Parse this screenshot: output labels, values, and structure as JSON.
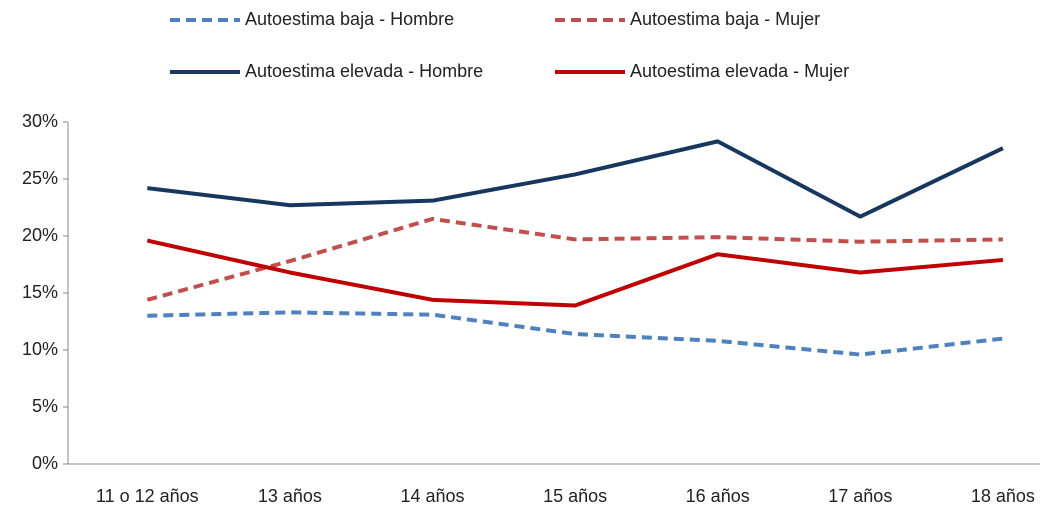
{
  "chart_data": {
    "type": "line",
    "categories": [
      "11 o 12 años",
      "13 años",
      "14 años",
      "15 años",
      "16 años",
      "17 años",
      "18 años"
    ],
    "series": [
      {
        "name": "Autoestima baja - Hombre",
        "color": "#4f81bd",
        "style": "dashed",
        "values": [
          13.0,
          13.3,
          13.1,
          11.4,
          10.8,
          9.6,
          11.0
        ]
      },
      {
        "name": "Autoestima baja - Mujer",
        "color": "#c0504d",
        "style": "dashed",
        "values": [
          14.4,
          17.8,
          21.5,
          19.7,
          19.9,
          19.5,
          19.7
        ]
      },
      {
        "name": "Autoestima elevada - Hombre",
        "color": "#17375e",
        "style": "solid",
        "values": [
          24.2,
          22.7,
          23.1,
          25.4,
          28.3,
          21.7,
          27.7
        ]
      },
      {
        "name": "Autoestima elevada - Mujer",
        "color": "#c00000",
        "style": "solid",
        "values": [
          19.6,
          16.8,
          14.4,
          13.9,
          18.4,
          16.8,
          17.9
        ]
      }
    ],
    "ylim": [
      0,
      30
    ],
    "yticks": [
      {
        "value": 0,
        "label": "0%"
      },
      {
        "value": 5,
        "label": "5%"
      },
      {
        "value": 10,
        "label": "10%"
      },
      {
        "value": 15,
        "label": "15%"
      },
      {
        "value": 20,
        "label": "20%"
      },
      {
        "value": 25,
        "label": "25%"
      },
      {
        "value": 30,
        "label": "30%"
      }
    ],
    "legend": "top"
  }
}
